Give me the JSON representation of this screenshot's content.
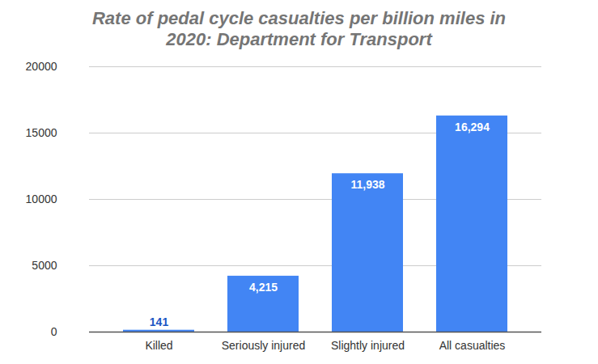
{
  "chart_data": {
    "type": "bar",
    "title": "Rate of pedal cycle casualties per billion miles in 2020: Department for Transport",
    "categories": [
      "Killed",
      "Seriously injured",
      "Slightly injured",
      "All casualties"
    ],
    "values": [
      141,
      4215,
      11938,
      16294
    ],
    "value_labels": [
      "141",
      "4,215",
      "11,938",
      "16,294"
    ],
    "color": "#4285f4",
    "ylim": [
      0,
      20000
    ],
    "yticks": [
      0,
      5000,
      10000,
      15000,
      20000
    ],
    "grid": true,
    "data_labels": true
  }
}
